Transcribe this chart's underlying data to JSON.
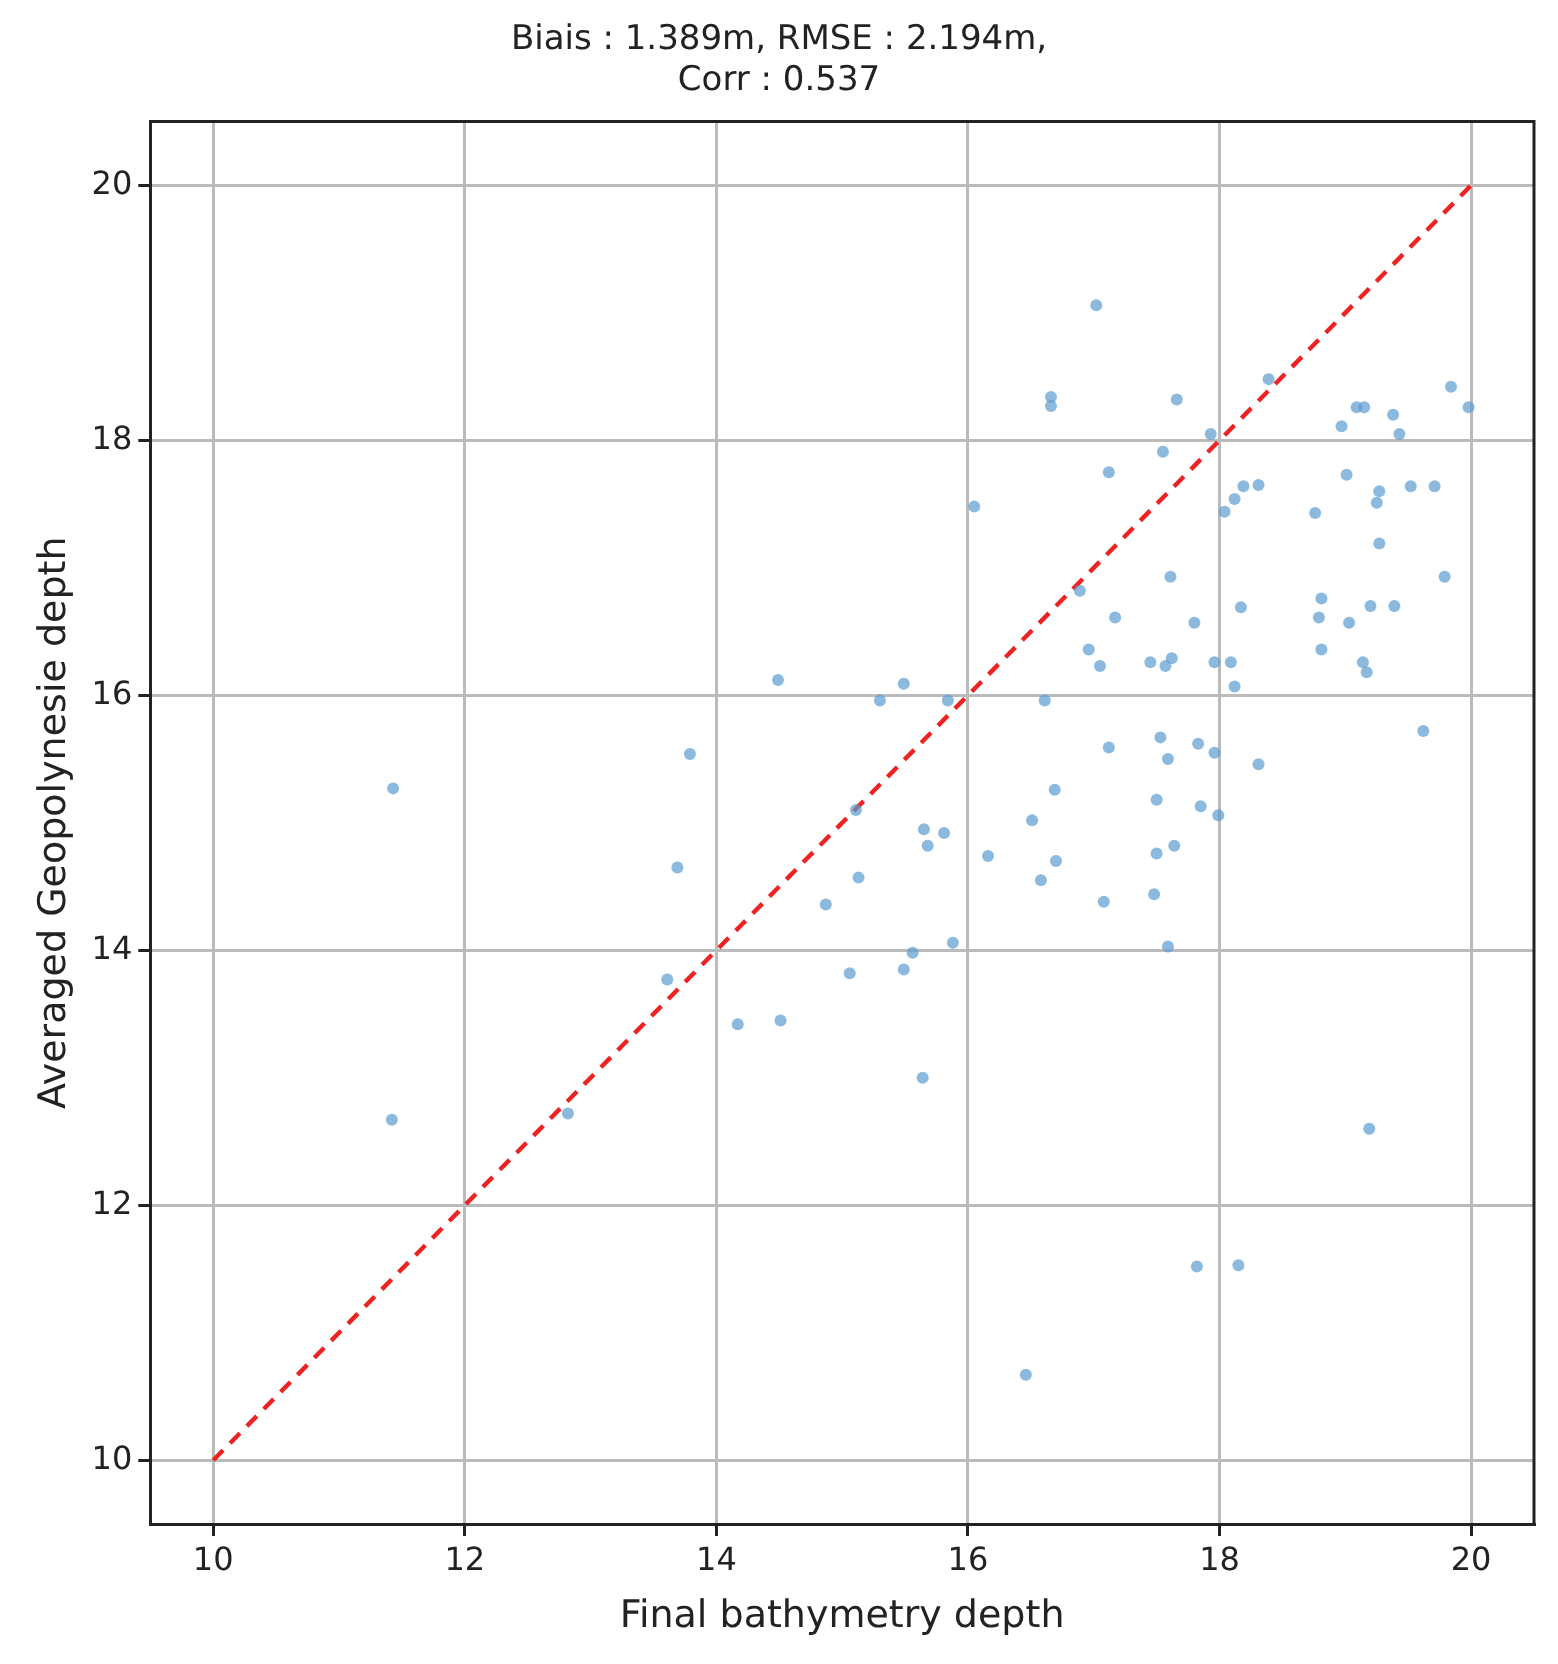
{
  "chart_data": {
    "type": "scatter",
    "title": "Biais : 1.389m, RMSE : 2.194m,\nCorr : 0.537",
    "xlabel": "Final bathymetry depth",
    "ylabel": "Averaged Geopolynesie depth",
    "xlim": [
      9.5,
      20.5
    ],
    "ylim": [
      9.5,
      20.5
    ],
    "xticks": [
      10,
      12,
      14,
      16,
      18,
      20
    ],
    "yticks": [
      10,
      12,
      14,
      16,
      18,
      20
    ],
    "grid": true,
    "legend": false,
    "marker": "circle",
    "series": [
      {
        "color": "#5b9bd0",
        "x": [
          11.43,
          11.42,
          12.82,
          13.79,
          13.69,
          13.61,
          14.17,
          14.51,
          14.49,
          14.87,
          15.11,
          15.13,
          15.06,
          15.3,
          15.49,
          15.49,
          15.56,
          15.65,
          15.68,
          15.64,
          15.81,
          15.88,
          15.84,
          16.05,
          16.16,
          16.51,
          16.58,
          16.61,
          16.66,
          16.66,
          16.69,
          16.7,
          16.46,
          16.89,
          17.02,
          16.96,
          17.05,
          17.08,
          17.12,
          17.12,
          17.17,
          17.45,
          17.48,
          17.5,
          17.5,
          17.57,
          17.55,
          17.53,
          17.59,
          17.61,
          17.59,
          17.62,
          17.64,
          17.66,
          17.8,
          17.83,
          17.85,
          17.82,
          17.93,
          17.96,
          17.99,
          17.96,
          18.04,
          18.09,
          18.12,
          18.12,
          18.19,
          18.31,
          18.15,
          18.17,
          18.31,
          18.39,
          18.76,
          18.81,
          18.81,
          18.79,
          18.97,
          19.01,
          19.03,
          19.09,
          19.15,
          19.14,
          19.17,
          19.19,
          19.2,
          19.25,
          19.27,
          19.27,
          19.38,
          19.39,
          19.43,
          19.52,
          19.62,
          19.71,
          19.79,
          19.84,
          19.98
        ],
        "values": [
          15.27,
          12.67,
          12.72,
          15.54,
          14.65,
          13.77,
          13.42,
          13.45,
          16.12,
          14.36,
          15.1,
          14.57,
          13.82,
          15.96,
          16.09,
          13.85,
          13.98,
          14.95,
          14.82,
          13.0,
          14.92,
          14.06,
          15.96,
          17.48,
          14.74,
          15.02,
          14.55,
          15.96,
          18.34,
          18.27,
          15.26,
          14.7,
          10.67,
          16.82,
          19.06,
          16.36,
          16.23,
          14.38,
          17.75,
          15.59,
          16.61,
          16.26,
          14.44,
          14.76,
          15.18,
          16.23,
          17.91,
          15.67,
          15.5,
          16.93,
          14.03,
          16.29,
          14.82,
          18.32,
          16.57,
          15.62,
          15.13,
          11.52,
          18.05,
          15.55,
          15.06,
          16.26,
          17.44,
          16.26,
          17.54,
          16.07,
          17.64,
          17.65,
          11.53,
          16.69,
          15.46,
          18.48,
          17.43,
          16.76,
          16.36,
          16.61,
          18.11,
          17.73,
          16.57,
          18.26,
          18.26,
          16.26,
          16.18,
          12.6,
          16.7,
          17.51,
          17.19,
          17.6,
          18.2,
          16.7,
          18.05,
          17.64,
          15.72,
          17.64,
          16.93,
          18.42,
          18.26
        ]
      },
      {
        "type": "line",
        "color": "#ee2222",
        "line_style": "dashed",
        "marker": "none",
        "x": [
          10,
          20
        ],
        "values": [
          10,
          20
        ]
      }
    ]
  }
}
